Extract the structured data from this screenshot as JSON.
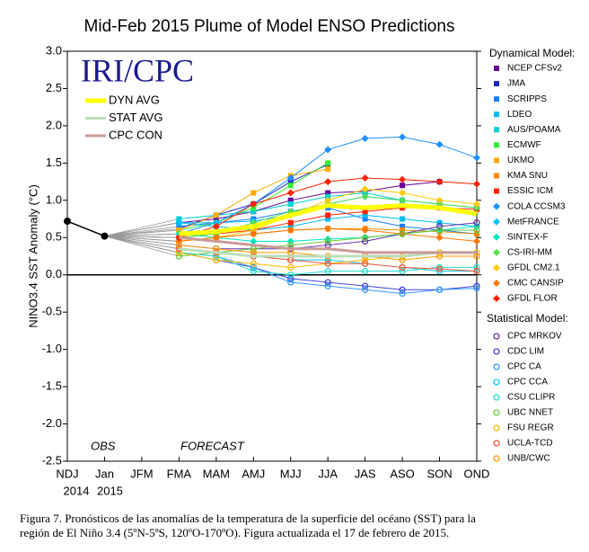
{
  "chart_data": {
    "type": "line",
    "title": "Mid-Feb 2015 Plume of Model ENSO Predictions",
    "logo": "IRI/CPC",
    "y_label": "NINO3.4 SST Anomaly (°C)",
    "annotations": [
      "OBS",
      "FORECAST"
    ],
    "categories": [
      "NDJ",
      "Jan",
      "JFM",
      "FMA",
      "MAM",
      "AMJ",
      "MJJ",
      "JJA",
      "JAS",
      "ASO",
      "SON",
      "OND"
    ],
    "x_sublabels": [
      "2014",
      "2015",
      null,
      null,
      null,
      null,
      null,
      null,
      null,
      null,
      null,
      null
    ],
    "ylim": [
      -2.5,
      3.0
    ],
    "yticks": [
      -2.5,
      {
        "value": -2.0,
        "label": "-2.0"
      },
      -1.5,
      {
        "value": -1.0,
        "label": "-1.0"
      },
      -0.5,
      {
        "value": 0.0,
        "label": "0.0"
      },
      0.5,
      {
        "value": 1.0,
        "label": "1.0"
      },
      1.5,
      {
        "value": 2.0,
        "label": "2.0"
      },
      2.5,
      {
        "value": 3.0,
        "label": "3.0"
      }
    ],
    "observed": {
      "color": "#000000",
      "values": [
        0.72,
        0.52,
        null,
        null,
        null,
        null,
        null,
        null,
        null,
        null,
        null,
        null
      ]
    },
    "legend_titles": {
      "dynamical": "Dynamical Model:",
      "statistical": "Statistical Model:"
    },
    "series": [
      {
        "name": "NCEP CFSv2",
        "group": "dynamical",
        "marker": "square",
        "color": "#660099",
        "values": [
          null,
          null,
          null,
          0.7,
          0.75,
          0.85,
          1.0,
          1.1,
          1.12,
          1.2,
          1.25,
          null
        ]
      },
      {
        "name": "JMA",
        "group": "dynamical",
        "marker": "square",
        "color": "#2222cc",
        "values": [
          null,
          null,
          null,
          0.62,
          0.8,
          0.95,
          1.25,
          1.48,
          null,
          null,
          null,
          null
        ]
      },
      {
        "name": "SCRIPPS",
        "group": "dynamical",
        "marker": "square",
        "color": "#1a80ff",
        "values": [
          null,
          null,
          null,
          0.65,
          0.7,
          0.75,
          0.85,
          0.9,
          0.75,
          0.65,
          0.6,
          0.55
        ]
      },
      {
        "name": "LDEO",
        "group": "dynamical",
        "marker": "square",
        "color": "#00bbee",
        "values": [
          null,
          null,
          null,
          0.7,
          0.65,
          0.6,
          0.65,
          0.75,
          0.8,
          0.75,
          0.7,
          0.65
        ]
      },
      {
        "name": "AUS/POAMA",
        "group": "dynamical",
        "marker": "square",
        "color": "#00d0d0",
        "values": [
          null,
          null,
          null,
          0.75,
          0.8,
          0.85,
          0.95,
          1.05,
          1.1,
          1.0,
          0.95,
          0.9
        ]
      },
      {
        "name": "ECMWF",
        "group": "dynamical",
        "marker": "square",
        "color": "#33ee33",
        "values": [
          null,
          null,
          null,
          0.6,
          0.7,
          0.9,
          1.2,
          1.5,
          null,
          null,
          null,
          null
        ]
      },
      {
        "name": "UKMO",
        "group": "dynamical",
        "marker": "square",
        "color": "#ffaa00",
        "values": [
          null,
          null,
          null,
          0.6,
          0.8,
          1.1,
          1.33,
          1.42,
          null,
          null,
          null,
          null
        ]
      },
      {
        "name": "KMA SNU",
        "group": "dynamical",
        "marker": "square",
        "color": "#ff8800",
        "values": [
          null,
          null,
          null,
          0.45,
          0.5,
          0.55,
          0.6,
          0.62,
          0.62,
          0.6,
          0.58,
          0.55
        ]
      },
      {
        "name": "ESSIC ICM",
        "group": "dynamical",
        "marker": "square",
        "color": "#ff2200",
        "values": [
          null,
          null,
          null,
          0.5,
          0.55,
          0.6,
          0.7,
          0.8,
          0.85,
          0.9,
          0.9,
          0.88
        ]
      },
      {
        "name": "COLA CCSM3",
        "group": "dynamical",
        "marker": "diamond",
        "color": "#1e90ff",
        "values": [
          null,
          null,
          null,
          0.55,
          0.7,
          0.95,
          1.3,
          1.68,
          1.83,
          1.85,
          1.75,
          1.57
        ]
      },
      {
        "name": "MetFRANCE",
        "group": "dynamical",
        "marker": "diamond",
        "color": "#00bfff",
        "values": [
          null,
          null,
          null,
          0.7,
          0.7,
          0.72,
          0.8,
          0.95,
          1.05,
          1.0,
          null,
          null
        ]
      },
      {
        "name": "SINTEX-F",
        "group": "dynamical",
        "marker": "diamond",
        "color": "#00e5c0",
        "values": [
          null,
          null,
          null,
          0.55,
          0.5,
          0.45,
          0.45,
          0.48,
          0.5,
          0.55,
          0.6,
          0.65
        ]
      },
      {
        "name": "CS-IRI-MM",
        "group": "dynamical",
        "marker": "diamond",
        "color": "#55dd55",
        "values": [
          null,
          null,
          null,
          0.5,
          0.55,
          0.7,
          0.85,
          0.95,
          1.05,
          1.0,
          0.95,
          0.9
        ]
      },
      {
        "name": "GFDL CM2.1",
        "group": "dynamical",
        "marker": "diamond",
        "color": "#ffcc00",
        "values": [
          null,
          null,
          null,
          0.45,
          0.5,
          0.6,
          0.8,
          1.0,
          1.15,
          1.1,
          1.0,
          0.95
        ]
      },
      {
        "name": "CMC CANSIP",
        "group": "dynamical",
        "marker": "diamond",
        "color": "#ff7700",
        "values": [
          null,
          null,
          null,
          0.45,
          0.5,
          0.55,
          0.6,
          0.62,
          0.6,
          0.55,
          0.5,
          0.45
        ]
      },
      {
        "name": "GFDL FLOR",
        "group": "dynamical",
        "marker": "diamond",
        "color": "#ff2000",
        "values": [
          null,
          null,
          null,
          0.5,
          0.65,
          0.95,
          1.1,
          1.25,
          1.3,
          1.28,
          1.25,
          1.22
        ]
      },
      {
        "name": "CPC MRKOV",
        "group": "statistical",
        "marker": "circle",
        "color": "#6633aa",
        "values": [
          null,
          null,
          null,
          0.4,
          0.35,
          0.35,
          0.35,
          0.4,
          0.45,
          0.55,
          0.65,
          0.7
        ]
      },
      {
        "name": "CDC LIM",
        "group": "statistical",
        "marker": "circle",
        "color": "#4444dd",
        "values": [
          null,
          null,
          null,
          0.3,
          0.2,
          0.1,
          -0.05,
          -0.1,
          -0.15,
          -0.2,
          -0.2,
          -0.15
        ]
      },
      {
        "name": "CPC CA",
        "group": "statistical",
        "marker": "circle",
        "color": "#3399ff",
        "values": [
          null,
          null,
          null,
          0.3,
          0.25,
          0.1,
          -0.1,
          -0.15,
          -0.2,
          -0.25,
          -0.2,
          -0.18
        ]
      },
      {
        "name": "CPC CCA",
        "group": "statistical",
        "marker": "circle",
        "color": "#00ccff",
        "values": [
          null,
          null,
          null,
          0.35,
          0.3,
          0.25,
          0.2,
          0.2,
          0.15,
          0.1,
          0.05,
          0.05
        ]
      },
      {
        "name": "CSU CLIPR",
        "group": "statistical",
        "marker": "circle",
        "color": "#22ddcc",
        "values": [
          null,
          null,
          null,
          0.3,
          0.25,
          0.05,
          0.0,
          0.05,
          0.05,
          0.05,
          0.1,
          0.1
        ]
      },
      {
        "name": "UBC NNET",
        "group": "statistical",
        "marker": "circle",
        "color": "#66cc33",
        "values": [
          null,
          null,
          null,
          0.25,
          0.3,
          0.35,
          0.4,
          0.45,
          0.5,
          0.55,
          0.6,
          0.6
        ]
      },
      {
        "name": "FSU REGR",
        "group": "statistical",
        "marker": "circle",
        "color": "#ffbb00",
        "values": [
          null,
          null,
          null,
          0.3,
          0.2,
          0.15,
          0.1,
          0.15,
          0.2,
          0.25,
          0.3,
          0.3
        ]
      },
      {
        "name": "UCLA-TCD",
        "group": "statistical",
        "marker": "circle",
        "color": "#ff5533",
        "values": [
          null,
          null,
          null,
          0.35,
          0.3,
          0.25,
          0.2,
          0.15,
          0.15,
          0.1,
          0.08,
          0.05
        ]
      },
      {
        "name": "UNB/CWC",
        "group": "statistical",
        "marker": "circle",
        "color": "#ff9900",
        "values": [
          null,
          null,
          null,
          0.4,
          0.35,
          0.3,
          0.3,
          0.25,
          0.25,
          0.2,
          0.25,
          0.25
        ]
      },
      {
        "name": "DYN AVG",
        "group": "average",
        "marker": "none",
        "color": "#ffff00",
        "width": 5,
        "values": [
          null,
          null,
          null,
          0.55,
          0.58,
          0.65,
          0.8,
          0.93,
          0.9,
          0.93,
          0.9,
          0.82
        ]
      },
      {
        "name": "STAT AVG",
        "group": "average",
        "marker": "none",
        "color": "#bbddbb",
        "width": 3,
        "values": [
          null,
          null,
          null,
          0.35,
          0.3,
          0.25,
          0.25,
          0.25,
          0.25,
          0.25,
          0.3,
          0.3
        ]
      },
      {
        "name": "CPC CON",
        "group": "average",
        "marker": "none",
        "color": "#cc9999",
        "width": 3,
        "values": [
          null,
          null,
          null,
          0.5,
          0.45,
          0.4,
          0.35,
          0.35,
          0.3,
          0.3,
          0.3,
          0.3
        ]
      }
    ],
    "caption": [
      "Figura 7. Pronósticos de las anomalías de la temperatura de la superficie del océano (SST) para la",
      "región de El Niño 3.4 (5ºN-5ºS, 120ºO-170ºO). Figura actualizada el 17 de febrero de 2015."
    ]
  }
}
